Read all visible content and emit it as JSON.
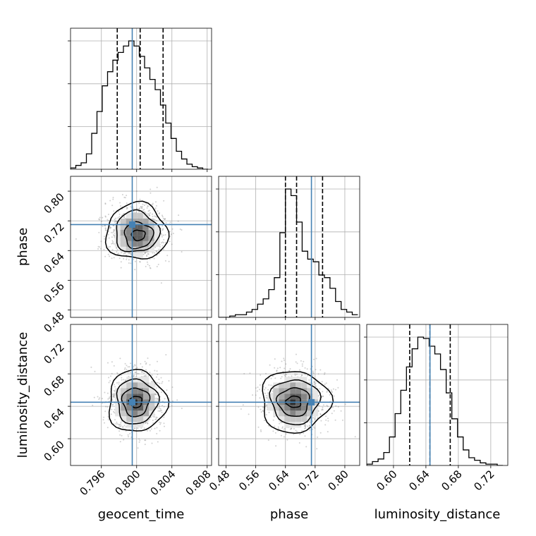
{
  "chart_data": {
    "type": "corner",
    "parameters": [
      "geocent_time",
      "phase",
      "luminosity_distance"
    ],
    "truth": {
      "geocent_time": 0.7995,
      "phase": 0.71,
      "luminosity_distance": 0.645
    },
    "grid": true,
    "axes": {
      "geocent_time": {
        "range": [
          0.7925,
          0.8085
        ],
        "ticks": [
          0.796,
          0.8,
          0.804,
          0.808
        ],
        "tick_labels": [
          "0.796",
          "0.800",
          "0.804",
          "0.808"
        ]
      },
      "phase": {
        "range": [
          0.46,
          0.84
        ],
        "ticks": [
          0.48,
          0.56,
          0.64,
          0.72,
          0.8
        ],
        "tick_labels": [
          "0.48",
          "0.56",
          "0.64",
          "0.72",
          "0.80"
        ]
      },
      "luminosity_distance": {
        "range": [
          0.567,
          0.741
        ],
        "ticks": [
          0.6,
          0.64,
          0.68,
          0.72
        ],
        "tick_labels": [
          "0.60",
          "0.64",
          "0.68",
          "0.72"
        ]
      }
    },
    "histograms": [
      {
        "param": "geocent_time",
        "bins": [
          0.7925,
          0.7931,
          0.7937,
          0.7943,
          0.7949,
          0.7955,
          0.7961,
          0.7967,
          0.7973,
          0.7979,
          0.7985,
          0.7991,
          0.7997,
          0.8003,
          0.8009,
          0.8015,
          0.8021,
          0.8027,
          0.8033,
          0.8039,
          0.8045,
          0.8051,
          0.8057,
          0.8063,
          0.8069,
          0.8075,
          0.8081
        ],
        "counts": [
          1,
          3,
          5,
          12,
          28,
          45,
          65,
          76,
          85,
          91,
          96,
          100,
          96,
          88,
          79,
          70,
          62,
          50,
          36,
          24,
          14,
          8,
          4,
          2,
          1,
          0
        ],
        "quantiles": [
          0.7978,
          0.8004,
          0.803
        ]
      },
      {
        "param": "phase",
        "bins": [
          0.46,
          0.475,
          0.49,
          0.505,
          0.52,
          0.535,
          0.55,
          0.565,
          0.58,
          0.595,
          0.61,
          0.625,
          0.64,
          0.655,
          0.67,
          0.685,
          0.7,
          0.715,
          0.73,
          0.745,
          0.76,
          0.775,
          0.79,
          0.805,
          0.82,
          0.835
        ],
        "counts": [
          0,
          0,
          1,
          2,
          2,
          4,
          6,
          10,
          14,
          21,
          30,
          64,
          97,
          92,
          72,
          50,
          44,
          42,
          32,
          30,
          22,
          12,
          6,
          4,
          2
        ],
        "quantiles": [
          0.64,
          0.67,
          0.74
        ]
      },
      {
        "param": "luminosity_distance",
        "bins": [
          0.567,
          0.574,
          0.581,
          0.588,
          0.595,
          0.602,
          0.609,
          0.616,
          0.623,
          0.63,
          0.637,
          0.644,
          0.651,
          0.658,
          0.665,
          0.672,
          0.679,
          0.686,
          0.693,
          0.7,
          0.707,
          0.714,
          0.721,
          0.728,
          0.735
        ],
        "counts": [
          1,
          3,
          5,
          10,
          22,
          40,
          58,
          76,
          90,
          99,
          98,
          92,
          86,
          74,
          56,
          36,
          22,
          12,
          6,
          4,
          2,
          1,
          1,
          0
        ],
        "quantiles": [
          0.62,
          0.645,
          0.67
        ]
      }
    ],
    "panels_2d": [
      {
        "x": "geocent_time",
        "y": "phase",
        "center": [
          0.8,
          0.69
        ],
        "spread": [
          0.0017,
          0.04
        ],
        "peak": [
          0.8004,
          0.673
        ]
      },
      {
        "x": "geocent_time",
        "y": "luminosity_distance",
        "center": [
          0.8,
          0.646
        ],
        "spread": [
          0.0016,
          0.02
        ],
        "peak": [
          0.7998,
          0.645
        ]
      },
      {
        "x": "phase",
        "y": "luminosity_distance",
        "center": [
          0.665,
          0.646
        ],
        "spread": [
          0.045,
          0.02
        ],
        "peak": [
          0.66,
          0.645
        ]
      }
    ],
    "colors": {
      "truth": "#4682b4",
      "hist": "#000000",
      "grid": "#b0b0b0"
    }
  }
}
